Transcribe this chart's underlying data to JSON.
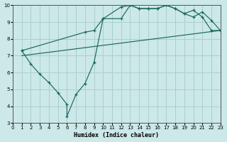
{
  "xlabel": "Humidex (Indice chaleur)",
  "bg_color": "#cce8e8",
  "grid_color": "#aad0cc",
  "line_color": "#1a6860",
  "xlim": [
    0,
    23
  ],
  "ylim": [
    3,
    10
  ],
  "xticks": [
    0,
    1,
    2,
    3,
    4,
    5,
    6,
    7,
    8,
    9,
    10,
    11,
    12,
    13,
    14,
    15,
    16,
    17,
    18,
    19,
    20,
    21,
    22,
    23
  ],
  "yticks": [
    3,
    4,
    5,
    6,
    7,
    8,
    9,
    10
  ],
  "line1_x": [
    1,
    2,
    3,
    4,
    5,
    6,
    6,
    7,
    8,
    9,
    10,
    12,
    13,
    14,
    15,
    16,
    17,
    18,
    19,
    20,
    21,
    22,
    23
  ],
  "line1_y": [
    7.3,
    6.5,
    5.9,
    5.4,
    4.8,
    4.1,
    3.4,
    4.7,
    5.35,
    6.6,
    9.2,
    9.2,
    10.0,
    9.8,
    9.8,
    9.8,
    10.0,
    9.8,
    9.5,
    9.3,
    9.6,
    9.1,
    8.5
  ],
  "line2_x": [
    1,
    8,
    9,
    10,
    12,
    13,
    14,
    15,
    16,
    17,
    18,
    19,
    20,
    21,
    22,
    23
  ],
  "line2_y": [
    7.3,
    8.4,
    8.5,
    9.2,
    9.9,
    10.0,
    9.8,
    9.8,
    9.8,
    10.0,
    9.8,
    9.5,
    9.7,
    9.3,
    8.5,
    8.5
  ],
  "line3_x": [
    1,
    23
  ],
  "line3_y": [
    7.0,
    8.5
  ]
}
